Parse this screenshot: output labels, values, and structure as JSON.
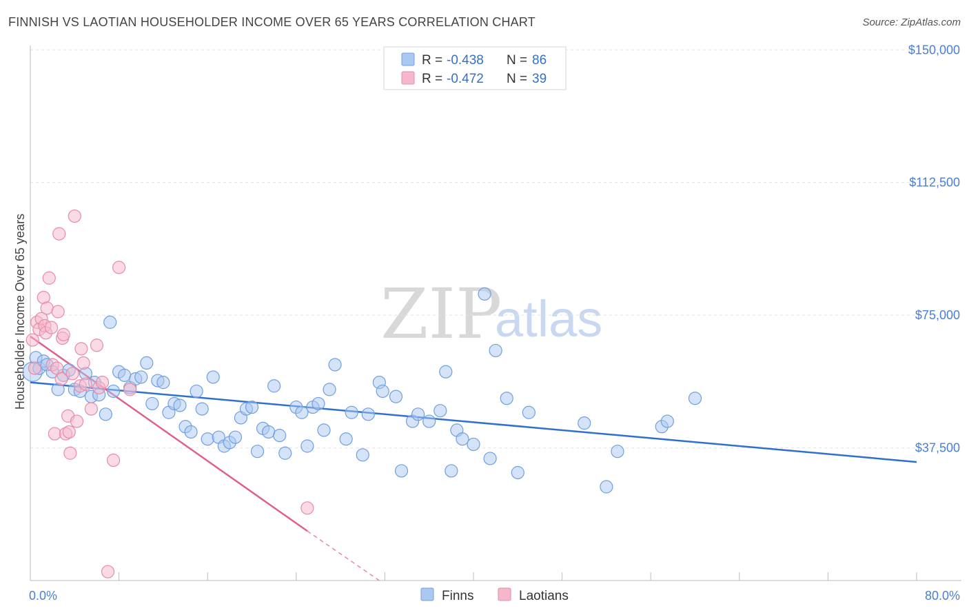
{
  "header": {
    "title": "FINNISH VS LAOTIAN HOUSEHOLDER INCOME OVER 65 YEARS CORRELATION CHART",
    "source": "Source: ZipAtlas.com"
  },
  "watermark": {
    "zip": "ZIP",
    "atlas": "atlas"
  },
  "legend": {
    "rows": [
      {
        "r_label": "R =",
        "r_value": "-0.438",
        "n_label": "N =",
        "n_value": "86",
        "color": "#aac8f0"
      },
      {
        "r_label": "R =",
        "r_value": "-0.472",
        "n_label": "N =",
        "n_value": "39",
        "color": "#f5b8cb"
      }
    ]
  },
  "bottom_legend": [
    {
      "label": "Finns",
      "color": "#aac8f0"
    },
    {
      "label": "Laotians",
      "color": "#f5b8cb"
    }
  ],
  "chart_data": {
    "type": "scatter",
    "title": "FINNISH VS LAOTIAN HOUSEHOLDER INCOME OVER 65 YEARS CORRELATION CHART",
    "xlabel": "",
    "ylabel": "Householder Income Over 65 years",
    "xlim": [
      0,
      80
    ],
    "ylim": [
      0,
      152000
    ],
    "x_tick_labels": [
      "0.0%",
      "80.0%"
    ],
    "y_ticks": [
      37500,
      75000,
      112500,
      150000
    ],
    "y_tick_labels": [
      "$37,500",
      "$75,000",
      "$112,500",
      "$150,000"
    ],
    "grid": true,
    "legend_position": "top-center",
    "series": [
      {
        "name": "Finns",
        "color": "#6f9fe0",
        "fill": "#aac8f0",
        "trend": {
          "x": [
            0,
            80
          ],
          "y": [
            56000,
            33500
          ]
        },
        "points": [
          [
            0.2,
            59000
          ],
          [
            0.5,
            63000
          ],
          [
            0.8,
            60000
          ],
          [
            1.2,
            62000
          ],
          [
            1.5,
            61000
          ],
          [
            2.0,
            59000
          ],
          [
            2.5,
            54000
          ],
          [
            3.0,
            58000
          ],
          [
            3.5,
            59500
          ],
          [
            4.0,
            54000
          ],
          [
            4.5,
            53500
          ],
          [
            5.0,
            58500
          ],
          [
            5.5,
            52000
          ],
          [
            5.8,
            56000
          ],
          [
            6.2,
            52500
          ],
          [
            6.8,
            47000
          ],
          [
            7.2,
            73000
          ],
          [
            7.5,
            53500
          ],
          [
            8.0,
            59000
          ],
          [
            8.5,
            58000
          ],
          [
            9.0,
            54500
          ],
          [
            9.5,
            57000
          ],
          [
            10.0,
            57500
          ],
          [
            10.5,
            61500
          ],
          [
            11.0,
            50000
          ],
          [
            11.5,
            56500
          ],
          [
            12.0,
            56000
          ],
          [
            12.5,
            47500
          ],
          [
            13.0,
            50000
          ],
          [
            13.5,
            49500
          ],
          [
            14.0,
            43500
          ],
          [
            14.5,
            42000
          ],
          [
            15.0,
            53500
          ],
          [
            15.5,
            48500
          ],
          [
            16.0,
            40000
          ],
          [
            16.5,
            57500
          ],
          [
            17.0,
            40500
          ],
          [
            17.5,
            38000
          ],
          [
            18.0,
            39000
          ],
          [
            18.5,
            40500
          ],
          [
            19.0,
            46000
          ],
          [
            19.5,
            48500
          ],
          [
            20.0,
            49000
          ],
          [
            20.5,
            36500
          ],
          [
            21.0,
            43000
          ],
          [
            21.5,
            42000
          ],
          [
            22.0,
            55000
          ],
          [
            22.5,
            41000
          ],
          [
            23.0,
            36000
          ],
          [
            24.0,
            49000
          ],
          [
            24.5,
            47500
          ],
          [
            25.0,
            38000
          ],
          [
            25.5,
            49000
          ],
          [
            26.0,
            50000
          ],
          [
            26.5,
            42500
          ],
          [
            27.0,
            54000
          ],
          [
            27.5,
            61000
          ],
          [
            28.5,
            40000
          ],
          [
            29.0,
            47500
          ],
          [
            30.0,
            35500
          ],
          [
            30.5,
            47000
          ],
          [
            31.5,
            56000
          ],
          [
            31.8,
            53500
          ],
          [
            33.0,
            52000
          ],
          [
            33.5,
            31000
          ],
          [
            34.5,
            45000
          ],
          [
            35.0,
            47000
          ],
          [
            36.0,
            45000
          ],
          [
            37.0,
            48000
          ],
          [
            37.5,
            59000
          ],
          [
            38.0,
            31000
          ],
          [
            38.5,
            42500
          ],
          [
            39.0,
            40000
          ],
          [
            40.0,
            38500
          ],
          [
            41.0,
            81000
          ],
          [
            41.5,
            34500
          ],
          [
            42.0,
            65000
          ],
          [
            43.0,
            51500
          ],
          [
            44.0,
            30500
          ],
          [
            45.0,
            47500
          ],
          [
            50.0,
            44500
          ],
          [
            52.0,
            26500
          ],
          [
            53.0,
            36500
          ],
          [
            57.0,
            43500
          ],
          [
            57.5,
            45000
          ],
          [
            60.0,
            51500
          ]
        ]
      },
      {
        "name": "Laotians",
        "color": "#e88aa6",
        "fill": "#f5b8cb",
        "trend": {
          "x": [
            0,
            25
          ],
          "y": [
            69000,
            14000
          ]
        },
        "trend_dashed": {
          "x": [
            25,
            31.5
          ],
          "y": [
            14000,
            0
          ]
        },
        "points": [
          [
            0.2,
            68000
          ],
          [
            0.4,
            60000
          ],
          [
            0.6,
            73000
          ],
          [
            0.8,
            71000
          ],
          [
            1.0,
            74000
          ],
          [
            1.2,
            80000
          ],
          [
            1.3,
            72000
          ],
          [
            1.4,
            70000
          ],
          [
            1.5,
            77000
          ],
          [
            1.7,
            85500
          ],
          [
            1.9,
            71500
          ],
          [
            2.0,
            61000
          ],
          [
            2.2,
            41500
          ],
          [
            2.4,
            60000
          ],
          [
            2.5,
            76000
          ],
          [
            2.6,
            98000
          ],
          [
            2.8,
            57000
          ],
          [
            2.9,
            68500
          ],
          [
            3.0,
            69500
          ],
          [
            3.2,
            41500
          ],
          [
            3.4,
            46500
          ],
          [
            3.5,
            42000
          ],
          [
            3.6,
            36000
          ],
          [
            3.8,
            58500
          ],
          [
            4.0,
            103000
          ],
          [
            4.2,
            45000
          ],
          [
            4.5,
            55000
          ],
          [
            4.6,
            65500
          ],
          [
            4.8,
            61500
          ],
          [
            5.0,
            55500
          ],
          [
            5.5,
            48500
          ],
          [
            6.0,
            66500
          ],
          [
            6.2,
            54500
          ],
          [
            6.5,
            56000
          ],
          [
            7.0,
            2500
          ],
          [
            7.5,
            34000
          ],
          [
            8.0,
            88500
          ],
          [
            9.0,
            54000
          ],
          [
            25.0,
            20500
          ]
        ]
      }
    ]
  }
}
